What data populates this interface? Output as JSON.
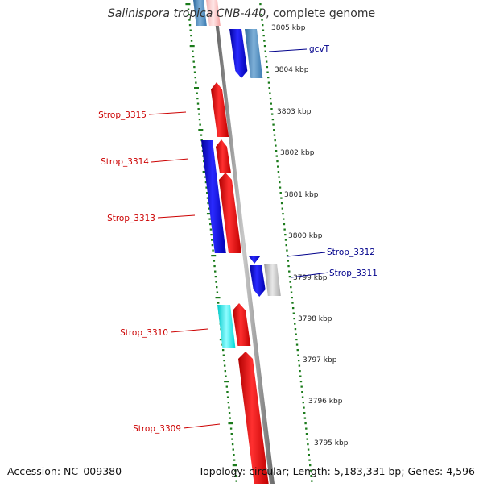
{
  "title": {
    "italic": "Salinispora tropica CNB-440",
    "rest": ", complete genome"
  },
  "footer": {
    "accession": "Accession: NC_009380",
    "topology": "Topology: circular; Length: 5,183,331 bp; Genes: 4,596"
  },
  "colors": {
    "forward_strand_gene": "#ff0000",
    "reverse_strand_gene": "#0000ff",
    "reverse_light": "#4682b4",
    "cyan": "#00ffff",
    "gray": "#bebebe",
    "tick_green": "#006400",
    "axis_gray": "#808080",
    "label_red": "#cc0000",
    "label_blue": "#00008b"
  },
  "ticks": [
    "3805 kbp",
    "3804 kbp",
    "3803 kbp",
    "3802 kbp",
    "3801 kbp",
    "3800 kbp",
    "3799 kbp",
    "3798 kbp",
    "3797 kbp",
    "3796 kbp",
    "3795 kbp"
  ],
  "gene_labels": [
    {
      "text": "gcvT",
      "color": "blue"
    },
    {
      "text": "Strop_3315",
      "color": "red"
    },
    {
      "text": "Strop_3314",
      "color": "red"
    },
    {
      "text": "Strop_3313",
      "color": "red"
    },
    {
      "text": "Strop_3312",
      "color": "blue"
    },
    {
      "text": "Strop_3311",
      "color": "blue"
    },
    {
      "text": "Strop_3310",
      "color": "red"
    },
    {
      "text": "Strop_3309",
      "color": "red"
    }
  ]
}
